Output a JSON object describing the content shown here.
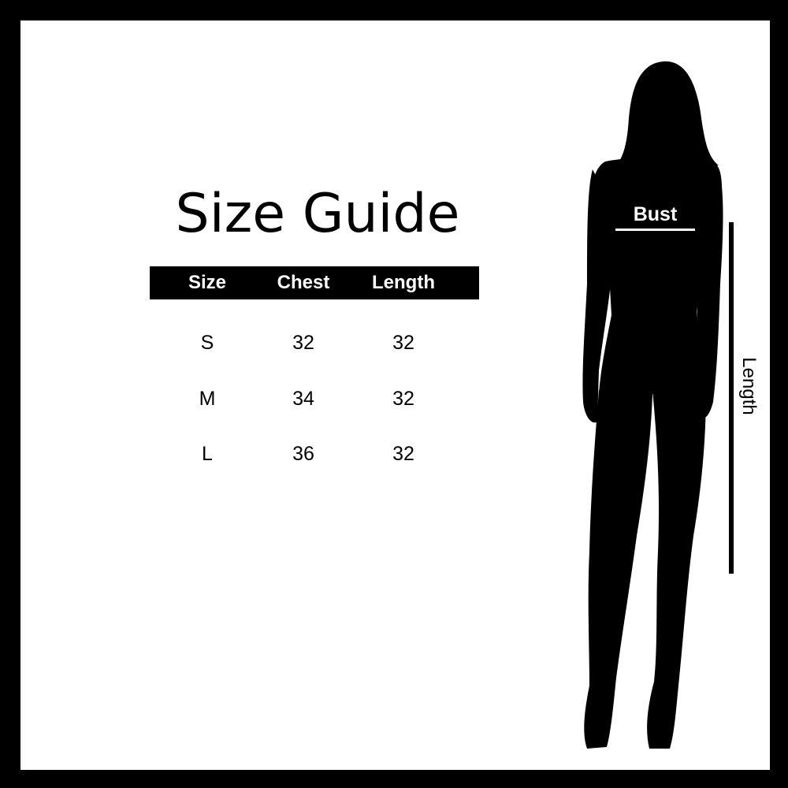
{
  "title": "Size Guide",
  "table": {
    "headers": [
      "Size",
      "Chest",
      "Length"
    ],
    "rows": [
      [
        "S",
        "32",
        "32"
      ],
      [
        "M",
        "34",
        "32"
      ],
      [
        "L",
        "36",
        "32"
      ]
    ]
  },
  "figure": {
    "bust_label": "Bust",
    "length_label": "Length"
  },
  "colors": {
    "border": "#000000",
    "background": "#ffffff",
    "header_bg": "#000000",
    "header_text": "#ffffff"
  }
}
